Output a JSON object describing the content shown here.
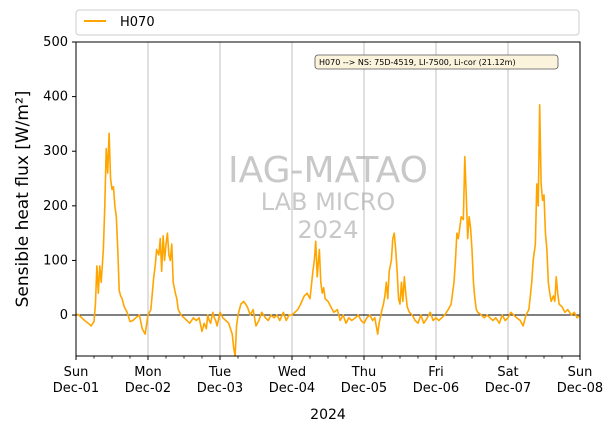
{
  "chart_data": {
    "type": "line",
    "ylabel": "Sensible heat flux [W/m²]",
    "xlabel": "2024",
    "ylim": [
      -75,
      500
    ],
    "yticks": [
      0,
      100,
      200,
      300,
      400,
      500
    ],
    "xlim": [
      "2024-12-01",
      "2024-12-08"
    ],
    "xticks": [
      {
        "day": "Sun",
        "date": "Dec-01"
      },
      {
        "day": "Mon",
        "date": "Dec-02"
      },
      {
        "day": "Tue",
        "date": "Dec-03"
      },
      {
        "day": "Wed",
        "date": "Dec-04"
      },
      {
        "day": "Thu",
        "date": "Dec-05"
      },
      {
        "day": "Fri",
        "date": "Dec-06"
      },
      {
        "day": "Sat",
        "date": "Dec-07"
      },
      {
        "day": "Sun",
        "date": "Dec-08"
      }
    ],
    "grid": "vertical at day boundaries",
    "legend_position": "top, above plot",
    "zero_line": true,
    "annotation": "H070 --> NS: 75D-4519, LI-7500, Li-cor (21.12m)",
    "watermark": {
      "line1": "IAG-MATAO",
      "line2": "LAB MICRO",
      "line3": "2024"
    },
    "series": [
      {
        "name": "H070",
        "color": "#FFA500",
        "x_unit": "days since Dec-01 00:00",
        "points": [
          [
            0.0,
            2
          ],
          [
            0.04,
            0
          ],
          [
            0.08,
            -5
          ],
          [
            0.12,
            -10
          ],
          [
            0.17,
            -15
          ],
          [
            0.21,
            -20
          ],
          [
            0.25,
            -12
          ],
          [
            0.27,
            20
          ],
          [
            0.29,
            90
          ],
          [
            0.31,
            40
          ],
          [
            0.33,
            90
          ],
          [
            0.35,
            60
          ],
          [
            0.38,
            120
          ],
          [
            0.4,
            200
          ],
          [
            0.42,
            305
          ],
          [
            0.44,
            260
          ],
          [
            0.46,
            333
          ],
          [
            0.48,
            250
          ],
          [
            0.5,
            230
          ],
          [
            0.52,
            235
          ],
          [
            0.54,
            200
          ],
          [
            0.56,
            180
          ],
          [
            0.58,
            120
          ],
          [
            0.6,
            45
          ],
          [
            0.62,
            35
          ],
          [
            0.64,
            30
          ],
          [
            0.67,
            15
          ],
          [
            0.71,
            5
          ],
          [
            0.75,
            -12
          ],
          [
            0.79,
            -10
          ],
          [
            0.83,
            -5
          ],
          [
            0.88,
            0
          ],
          [
            0.92,
            -25
          ],
          [
            0.96,
            -35
          ],
          [
            1.0,
            0
          ],
          [
            1.04,
            10
          ],
          [
            1.06,
            40
          ],
          [
            1.08,
            70
          ],
          [
            1.1,
            90
          ],
          [
            1.12,
            120
          ],
          [
            1.15,
            110
          ],
          [
            1.17,
            140
          ],
          [
            1.19,
            80
          ],
          [
            1.21,
            145
          ],
          [
            1.23,
            100
          ],
          [
            1.25,
            130
          ],
          [
            1.27,
            150
          ],
          [
            1.29,
            110
          ],
          [
            1.31,
            100
          ],
          [
            1.33,
            130
          ],
          [
            1.35,
            60
          ],
          [
            1.38,
            40
          ],
          [
            1.4,
            30
          ],
          [
            1.42,
            10
          ],
          [
            1.46,
            0
          ],
          [
            1.5,
            -5
          ],
          [
            1.54,
            -10
          ],
          [
            1.58,
            -15
          ],
          [
            1.63,
            -5
          ],
          [
            1.67,
            -10
          ],
          [
            1.71,
            -5
          ],
          [
            1.75,
            -30
          ],
          [
            1.78,
            -15
          ],
          [
            1.81,
            -25
          ],
          [
            1.83,
            0
          ],
          [
            1.85,
            -10
          ],
          [
            1.87,
            -15
          ],
          [
            1.9,
            5
          ],
          [
            1.92,
            -5
          ],
          [
            1.94,
            -10
          ],
          [
            1.96,
            -20
          ],
          [
            2.0,
            5
          ],
          [
            2.04,
            -5
          ],
          [
            2.08,
            -10
          ],
          [
            2.12,
            -15
          ],
          [
            2.17,
            -35
          ],
          [
            2.19,
            -60
          ],
          [
            2.21,
            -75
          ],
          [
            2.23,
            -20
          ],
          [
            2.25,
            0
          ],
          [
            2.29,
            20
          ],
          [
            2.33,
            25
          ],
          [
            2.38,
            15
          ],
          [
            2.42,
            0
          ],
          [
            2.46,
            10
          ],
          [
            2.5,
            -20
          ],
          [
            2.54,
            -10
          ],
          [
            2.58,
            5
          ],
          [
            2.63,
            -5
          ],
          [
            2.67,
            -10
          ],
          [
            2.71,
            0
          ],
          [
            2.75,
            -5
          ],
          [
            2.79,
            0
          ],
          [
            2.83,
            -10
          ],
          [
            2.88,
            5
          ],
          [
            2.92,
            -10
          ],
          [
            2.96,
            0
          ],
          [
            3.0,
            0
          ],
          [
            3.04,
            5
          ],
          [
            3.08,
            10
          ],
          [
            3.12,
            20
          ],
          [
            3.17,
            35
          ],
          [
            3.21,
            40
          ],
          [
            3.25,
            30
          ],
          [
            3.29,
            80
          ],
          [
            3.31,
            100
          ],
          [
            3.33,
            135
          ],
          [
            3.35,
            70
          ],
          [
            3.38,
            120
          ],
          [
            3.4,
            60
          ],
          [
            3.42,
            40
          ],
          [
            3.44,
            50
          ],
          [
            3.46,
            30
          ],
          [
            3.5,
            25
          ],
          [
            3.54,
            15
          ],
          [
            3.58,
            5
          ],
          [
            3.63,
            10
          ],
          [
            3.67,
            -10
          ],
          [
            3.71,
            0
          ],
          [
            3.75,
            -15
          ],
          [
            3.79,
            -5
          ],
          [
            3.83,
            -10
          ],
          [
            3.88,
            -5
          ],
          [
            3.92,
            0
          ],
          [
            3.96,
            -10
          ],
          [
            4.0,
            -15
          ],
          [
            4.04,
            -5
          ],
          [
            4.08,
            0
          ],
          [
            4.12,
            -10
          ],
          [
            4.15,
            -5
          ],
          [
            4.17,
            -20
          ],
          [
            4.19,
            -35
          ],
          [
            4.21,
            -15
          ],
          [
            4.25,
            10
          ],
          [
            4.27,
            20
          ],
          [
            4.29,
            35
          ],
          [
            4.31,
            60
          ],
          [
            4.33,
            30
          ],
          [
            4.35,
            80
          ],
          [
            4.38,
            100
          ],
          [
            4.4,
            140
          ],
          [
            4.42,
            150
          ],
          [
            4.44,
            120
          ],
          [
            4.46,
            80
          ],
          [
            4.48,
            30
          ],
          [
            4.5,
            20
          ],
          [
            4.52,
            60
          ],
          [
            4.54,
            25
          ],
          [
            4.56,
            70
          ],
          [
            4.58,
            40
          ],
          [
            4.6,
            15
          ],
          [
            4.63,
            5
          ],
          [
            4.67,
            0
          ],
          [
            4.71,
            -10
          ],
          [
            4.75,
            -15
          ],
          [
            4.79,
            0
          ],
          [
            4.83,
            -15
          ],
          [
            4.88,
            -5
          ],
          [
            4.92,
            5
          ],
          [
            4.96,
            -10
          ],
          [
            5.0,
            -5
          ],
          [
            5.04,
            -10
          ],
          [
            5.08,
            -5
          ],
          [
            5.12,
            0
          ],
          [
            5.17,
            10
          ],
          [
            5.21,
            20
          ],
          [
            5.25,
            60
          ],
          [
            5.27,
            100
          ],
          [
            5.29,
            150
          ],
          [
            5.31,
            140
          ],
          [
            5.33,
            160
          ],
          [
            5.35,
            180
          ],
          [
            5.38,
            175
          ],
          [
            5.4,
            290
          ],
          [
            5.42,
            220
          ],
          [
            5.44,
            140
          ],
          [
            5.46,
            180
          ],
          [
            5.48,
            160
          ],
          [
            5.5,
            120
          ],
          [
            5.52,
            60
          ],
          [
            5.54,
            30
          ],
          [
            5.56,
            10
          ],
          [
            5.58,
            5
          ],
          [
            5.63,
            0
          ],
          [
            5.67,
            -5
          ],
          [
            5.71,
            0
          ],
          [
            5.75,
            -5
          ],
          [
            5.79,
            -10
          ],
          [
            5.83,
            -5
          ],
          [
            5.88,
            -15
          ],
          [
            5.92,
            0
          ],
          [
            5.96,
            -10
          ],
          [
            6.0,
            -5
          ],
          [
            6.04,
            5
          ],
          [
            6.08,
            0
          ],
          [
            6.12,
            -5
          ],
          [
            6.17,
            -10
          ],
          [
            6.21,
            -20
          ],
          [
            6.25,
            0
          ],
          [
            6.29,
            10
          ],
          [
            6.33,
            60
          ],
          [
            6.35,
            100
          ],
          [
            6.38,
            130
          ],
          [
            6.4,
            240
          ],
          [
            6.42,
            200
          ],
          [
            6.44,
            385
          ],
          [
            6.46,
            240
          ],
          [
            6.48,
            210
          ],
          [
            6.5,
            220
          ],
          [
            6.52,
            150
          ],
          [
            6.54,
            120
          ],
          [
            6.56,
            60
          ],
          [
            6.58,
            40
          ],
          [
            6.6,
            25
          ],
          [
            6.63,
            35
          ],
          [
            6.65,
            25
          ],
          [
            6.67,
            70
          ],
          [
            6.69,
            40
          ],
          [
            6.71,
            20
          ],
          [
            6.75,
            15
          ],
          [
            6.79,
            5
          ],
          [
            6.83,
            10
          ],
          [
            6.88,
            0
          ],
          [
            6.92,
            5
          ],
          [
            6.96,
            -5
          ],
          [
            7.0,
            0
          ]
        ]
      }
    ]
  }
}
